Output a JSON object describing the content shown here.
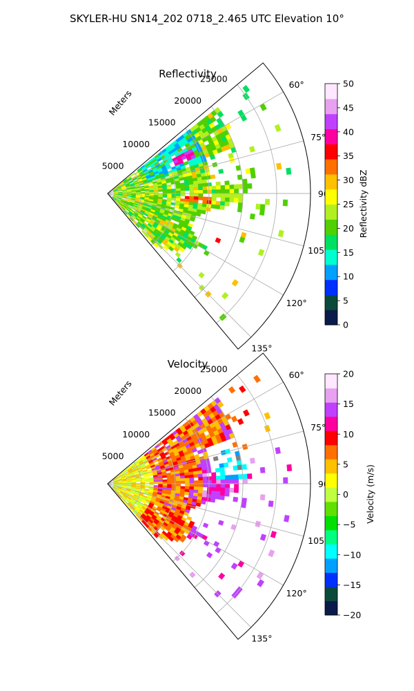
{
  "figure": {
    "title": "SKYLER-HU  SN14_202  0718_2.465 UTC Elevation 10°"
  },
  "chart_data": [
    {
      "type": "polar-sector",
      "title": "Reflectivity",
      "radial_label": "Meters",
      "theta_range_deg": [
        50,
        140
      ],
      "radial_range_m": [
        0,
        30000
      ],
      "radial_ticks": [
        5000,
        10000,
        15000,
        20000,
        25000
      ],
      "radial_tick_labels": [
        "5000",
        "10000",
        "15000",
        "20000",
        "25000"
      ],
      "angular_ticks": [
        60,
        75,
        90,
        105,
        120,
        135
      ],
      "angular_tick_labels": [
        "60°",
        "75°",
        "90°",
        "105°",
        "120°",
        "135°"
      ],
      "grid": true,
      "colorbar": {
        "label": "Reflectivity dBZ",
        "range": [
          0,
          50
        ],
        "ticks": [
          0,
          5,
          10,
          15,
          20,
          25,
          30,
          35,
          40,
          45,
          50
        ],
        "tick_labels": [
          "0",
          "5",
          "10",
          "15",
          "20",
          "25",
          "30",
          "35",
          "40",
          "45",
          "50"
        ],
        "colors": [
          "#0a1a4a",
          "#0b4a3a",
          "#0030ff",
          "#00a0ff",
          "#00ffd0",
          "#00e060",
          "#50d000",
          "#b0f020",
          "#ffff00",
          "#ffc000",
          "#ff7000",
          "#ff0000",
          "#ff00a0",
          "#c040ff",
          "#e8a0f0",
          "#ffe8ff"
        ]
      }
    },
    {
      "type": "polar-sector",
      "title": "Velocity",
      "radial_label": "Meters",
      "theta_range_deg": [
        50,
        140
      ],
      "radial_range_m": [
        0,
        30000
      ],
      "radial_ticks": [
        5000,
        10000,
        15000,
        20000,
        25000
      ],
      "radial_tick_labels": [
        "5000",
        "10000",
        "15000",
        "20000",
        "25000"
      ],
      "angular_ticks": [
        60,
        75,
        90,
        105,
        120,
        135
      ],
      "angular_tick_labels": [
        "60°",
        "75°",
        "90°",
        "105°",
        "120°",
        "135°"
      ],
      "grid": true,
      "colorbar": {
        "label": "Velocity (m/s)",
        "range": [
          -20,
          20
        ],
        "ticks": [
          -20,
          -15,
          -10,
          -5,
          0,
          5,
          10,
          15,
          20
        ],
        "tick_labels": [
          "−20",
          "−15",
          "−10",
          "−5",
          "0",
          "5",
          "10",
          "15",
          "20"
        ],
        "colors": [
          "#0a1a4a",
          "#0b4a3a",
          "#0030ff",
          "#00a0ff",
          "#00ffff",
          "#00ff80",
          "#00e000",
          "#60e000",
          "#c0ff40",
          "#ffff00",
          "#ffc000",
          "#ff7000",
          "#ff0000",
          "#ff00a0",
          "#c040ff",
          "#e8a0f0",
          "#ffe8ff"
        ]
      }
    }
  ]
}
